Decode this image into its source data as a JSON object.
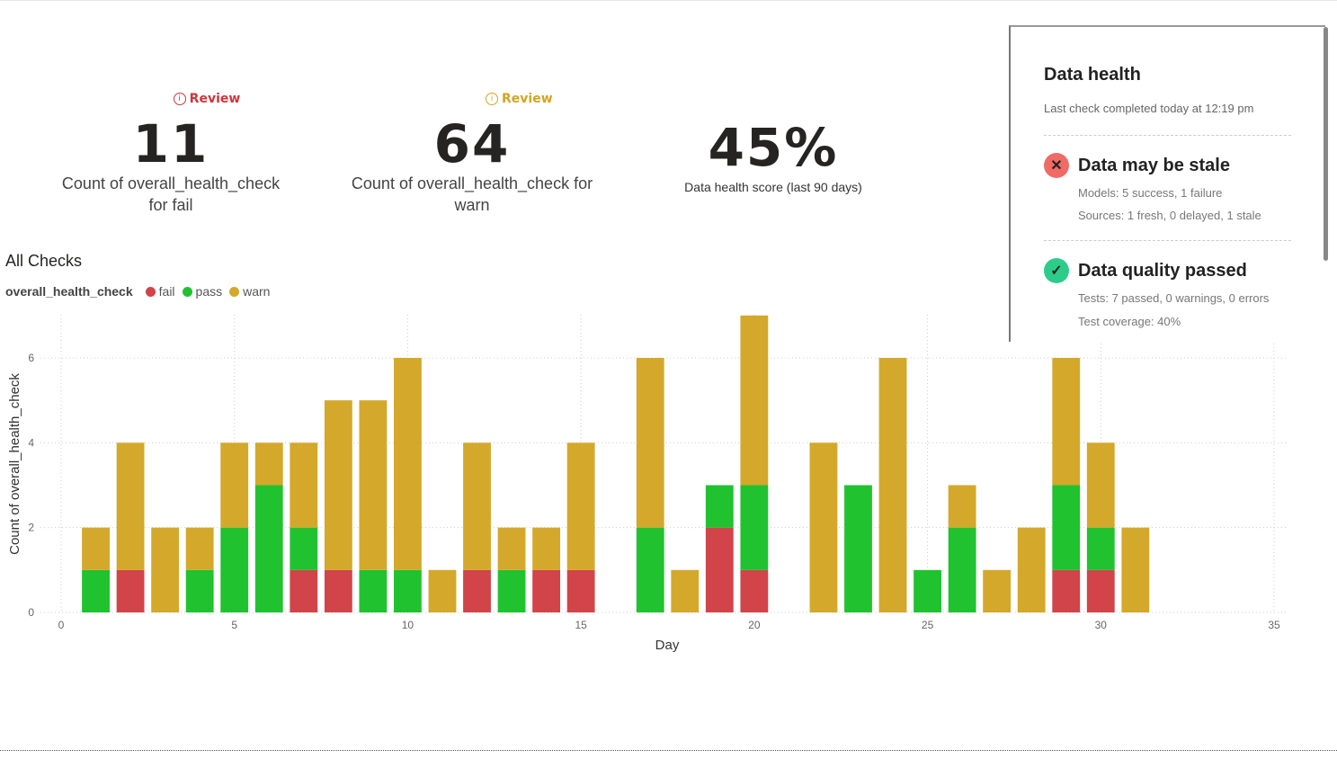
{
  "kpis": [
    {
      "badge": "Review",
      "badge_color": "#d13438",
      "value": "11",
      "label_line1": "Count of overall_health_check",
      "label_line2": "for fail"
    },
    {
      "badge": "Review",
      "badge_color": "#d4a520",
      "value": "64",
      "label_line1": "Count of overall_health_check for",
      "label_line2": "warn"
    },
    {
      "value": "45%",
      "label": "Data health score (last 90 days)"
    }
  ],
  "panel": {
    "title": "Data health",
    "subtitle": "Last check completed today at 12:19 pm",
    "sections": [
      {
        "icon": "x-circle-icon",
        "color": "#f06b66",
        "title": "Data may be stale",
        "lines": [
          "Models: 5 success, 1 failure",
          "Sources: 1 fresh, 0 delayed, 1 stale"
        ]
      },
      {
        "icon": "check-circle-icon",
        "color": "#2ecc8b",
        "title": "Data quality passed",
        "lines": [
          "Tests: 7 passed, 0 warnings, 0 errors",
          "Test coverage: 40%"
        ]
      }
    ]
  },
  "chart_data": {
    "type": "bar",
    "stacked": true,
    "title": "All Checks",
    "legend_title": "overall_health_check",
    "legend_position": "top-left",
    "xlabel": "Day",
    "ylabel": "Count of overall_health_check",
    "xlim": [
      0,
      35
    ],
    "ylim": [
      0,
      7
    ],
    "xticks": [
      0,
      5,
      10,
      15,
      20,
      25,
      30,
      35
    ],
    "yticks": [
      0,
      2,
      4,
      6
    ],
    "grid": true,
    "x": [
      1,
      2,
      3,
      4,
      5,
      6,
      7,
      8,
      9,
      10,
      11,
      12,
      13,
      14,
      15,
      16,
      17,
      18,
      19,
      20,
      21,
      22,
      23,
      24,
      25,
      26,
      27,
      28,
      29,
      30,
      31
    ],
    "series": [
      {
        "name": "fail",
        "color": "#d1444a",
        "values": [
          0,
          1,
          0,
          0,
          0,
          0,
          1,
          1,
          0,
          0,
          0,
          1,
          0,
          1,
          1,
          0,
          0,
          0,
          2,
          1,
          0,
          0,
          0,
          0,
          0,
          0,
          0,
          0,
          1,
          1,
          0
        ]
      },
      {
        "name": "pass",
        "color": "#21c22f",
        "values": [
          1,
          0,
          0,
          1,
          2,
          3,
          1,
          0,
          1,
          1,
          0,
          0,
          1,
          0,
          0,
          0,
          2,
          0,
          1,
          2,
          0,
          0,
          3,
          0,
          1,
          2,
          0,
          0,
          2,
          1,
          0
        ]
      },
      {
        "name": "warn",
        "color": "#d4a82a",
        "values": [
          1,
          3,
          2,
          1,
          2,
          1,
          2,
          4,
          4,
          5,
          1,
          3,
          1,
          1,
          3,
          0,
          4,
          1,
          0,
          4,
          0,
          4,
          0,
          6,
          0,
          1,
          1,
          2,
          3,
          2,
          2
        ]
      }
    ]
  }
}
